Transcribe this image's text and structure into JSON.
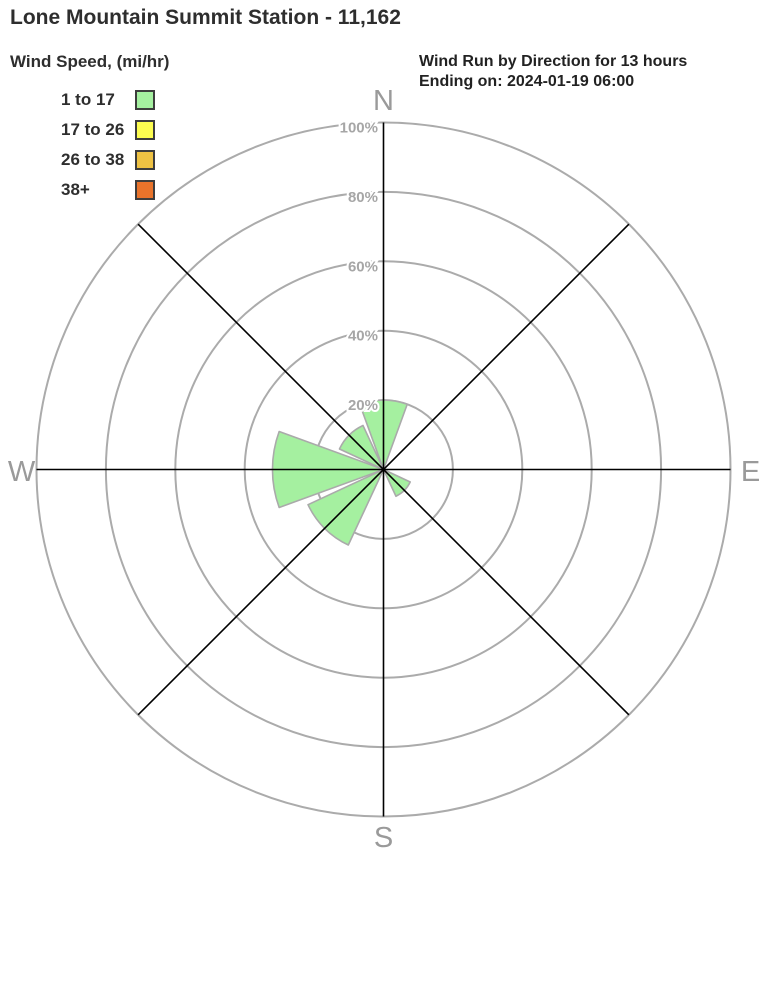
{
  "header": {
    "title": "Lone Mountain Summit Station - 11,162",
    "right_line1": "Wind Run by Direction for 13 hours",
    "right_line2": "Ending on: 2024-01-19 06:00"
  },
  "legend": {
    "title": "Wind Speed, (mi/hr)",
    "items": [
      {
        "label": "1 to 17",
        "color": "#a5f0a0"
      },
      {
        "label": "17 to 26",
        "color": "#fdfd50"
      },
      {
        "label": "26 to 38",
        "color": "#eec243"
      },
      {
        "label": "38+",
        "color": "#e8732b"
      }
    ]
  },
  "chart_data": {
    "type": "windrose",
    "units": "percent of wind run by direction",
    "directions": [
      "N",
      "NE",
      "E",
      "SE",
      "S",
      "SW",
      "W",
      "NW"
    ],
    "series": [
      {
        "name": "1 to 17",
        "color": "#a5f0a0",
        "values": [
          20,
          0,
          0,
          8.5,
          0,
          24,
          32,
          14
        ]
      },
      {
        "name": "17 to 26",
        "color": "#fdfd50",
        "values": [
          0,
          0,
          0,
          0,
          0,
          0,
          0,
          0
        ]
      },
      {
        "name": "26 to 38",
        "color": "#eec243",
        "values": [
          0,
          0,
          0,
          0,
          0,
          0,
          0,
          0
        ]
      },
      {
        "name": "38+",
        "color": "#e8732b",
        "values": [
          0,
          0,
          0,
          0,
          0,
          0,
          0,
          0
        ]
      }
    ],
    "ring_ticks": [
      {
        "value": 20,
        "label": "20%"
      },
      {
        "value": 40,
        "label": "40%"
      },
      {
        "value": 60,
        "label": "60%"
      },
      {
        "value": 80,
        "label": "80%"
      },
      {
        "value": 100,
        "label": "100%"
      }
    ],
    "radial_max": 100,
    "petal_width_deg": 40,
    "compass_labels": {
      "n": "N",
      "e": "E",
      "s": "S",
      "w": "W"
    },
    "legend_position": "top-left",
    "grid": true,
    "colors": {
      "ring": "#ababab",
      "axis": "#000000",
      "tick_text": "#a6a6a6",
      "compass_text": "#9a9a9a",
      "petal_stroke": "#aaaaaa",
      "background": "#ffffff"
    }
  }
}
